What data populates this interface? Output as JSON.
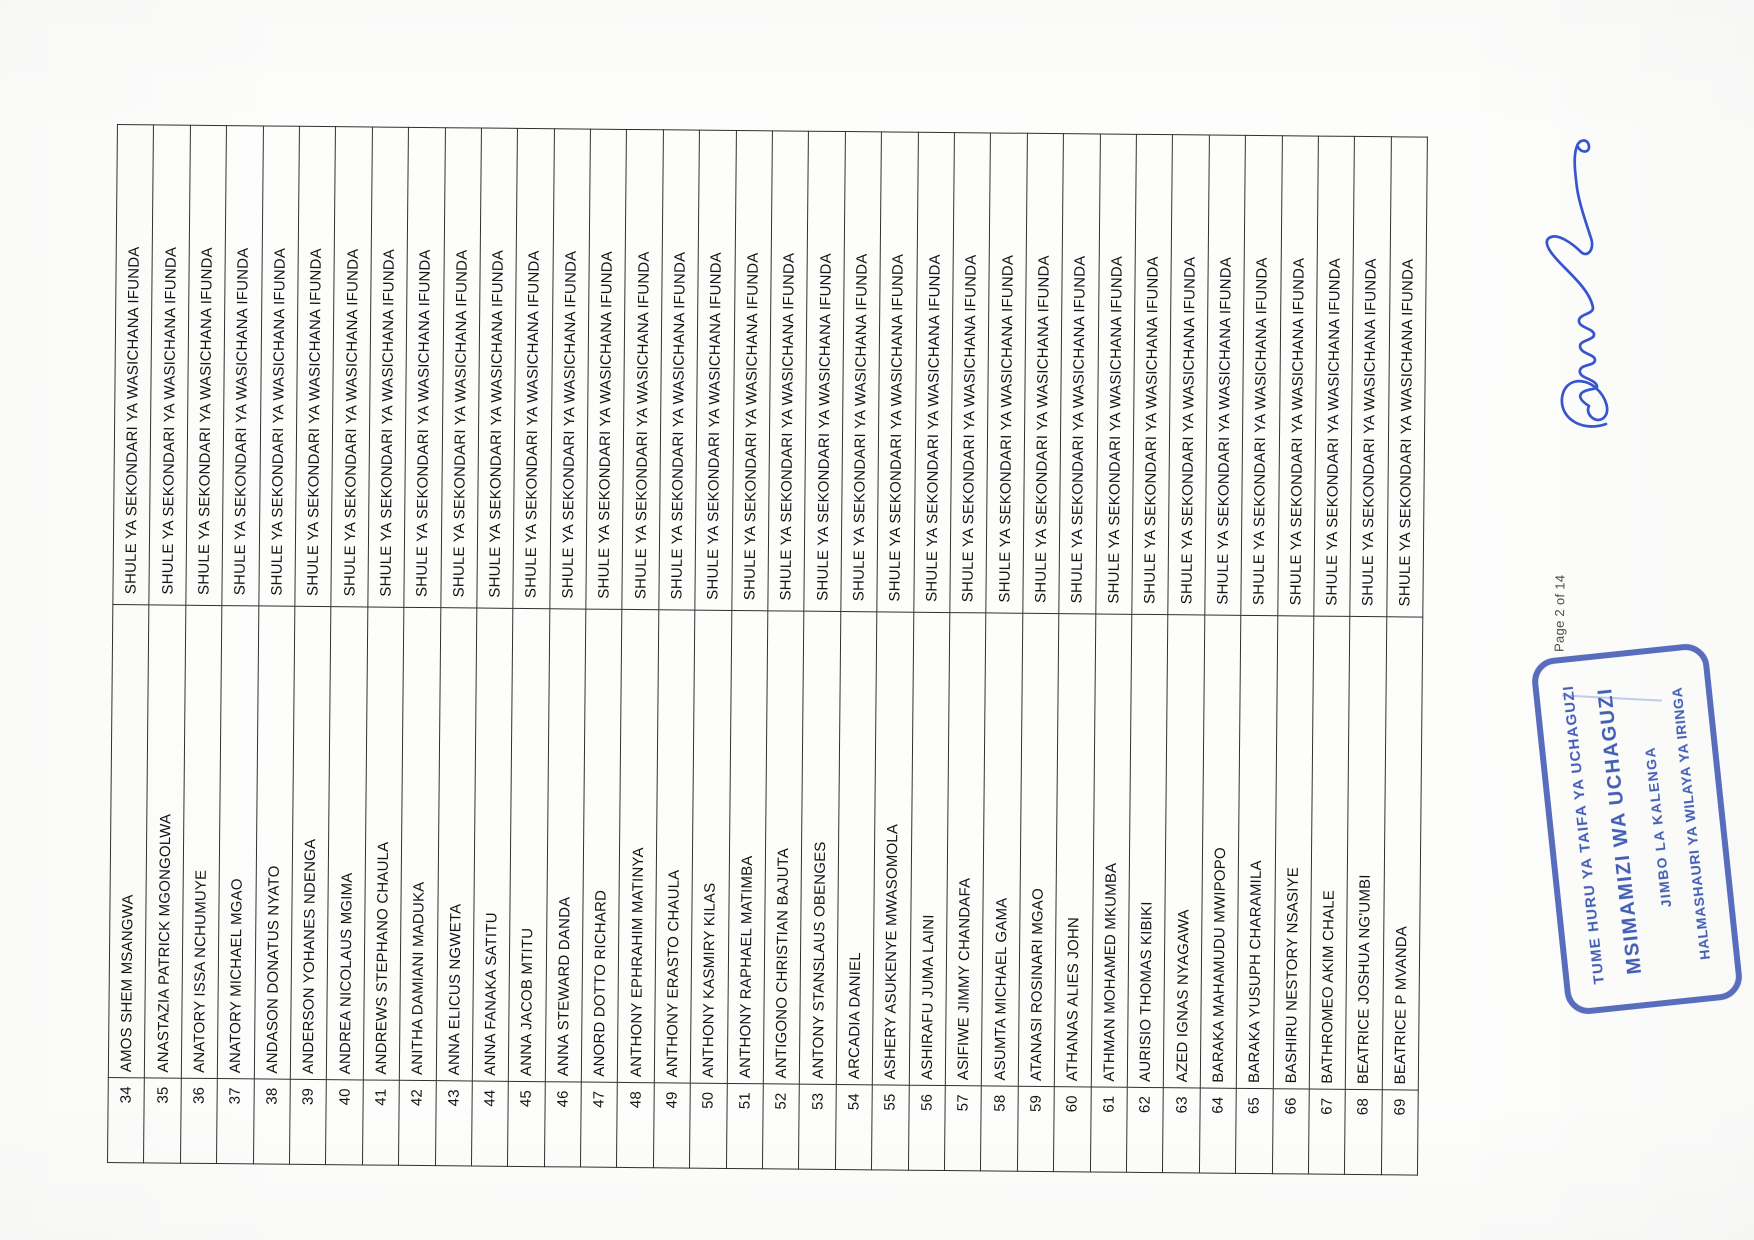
{
  "page": {
    "footer": "Page 2 of 14"
  },
  "table": {
    "columns": [
      "number",
      "candidate_name",
      "polling_station"
    ],
    "school_repeated_value": "SHULE YA SEKONDARI YA WASICHANA IFUNDA",
    "rows": [
      {
        "no": "34",
        "name": "AMOS SHEM MSANGWA",
        "school": "SHULE YA SEKONDARI YA WASICHANA IFUNDA"
      },
      {
        "no": "35",
        "name": "ANASTAZIA PATRICK MGONGOLWA",
        "school": "SHULE YA SEKONDARI YA WASICHANA IFUNDA"
      },
      {
        "no": "36",
        "name": "ANATORY ISSA NCHUMUYE",
        "school": "SHULE YA SEKONDARI YA WASICHANA IFUNDA"
      },
      {
        "no": "37",
        "name": "ANATORY MICHAEL MGAO",
        "school": "SHULE YA SEKONDARI YA WASICHANA IFUNDA"
      },
      {
        "no": "38",
        "name": "ANDASON DONATUS NYATO",
        "school": "SHULE YA SEKONDARI YA WASICHANA IFUNDA"
      },
      {
        "no": "39",
        "name": "ANDERSON YOHANES NDENGA",
        "school": "SHULE YA SEKONDARI YA WASICHANA IFUNDA"
      },
      {
        "no": "40",
        "name": "ANDREA NICOLAUS MGIMA",
        "school": "SHULE YA SEKONDARI YA WASICHANA IFUNDA"
      },
      {
        "no": "41",
        "name": "ANDREWS STEPHANO CHAULA",
        "school": "SHULE YA SEKONDARI YA WASICHANA IFUNDA"
      },
      {
        "no": "42",
        "name": "ANITHA DAMIANI MADUKA",
        "school": "SHULE YA SEKONDARI YA WASICHANA IFUNDA"
      },
      {
        "no": "43",
        "name": "ANNA ELICUS NGWETA",
        "school": "SHULE YA SEKONDARI YA WASICHANA IFUNDA"
      },
      {
        "no": "44",
        "name": "ANNA FANAKA SATITU",
        "school": "SHULE YA SEKONDARI YA WASICHANA IFUNDA"
      },
      {
        "no": "45",
        "name": "ANNA JACOB MTITU",
        "school": "SHULE YA SEKONDARI YA WASICHANA IFUNDA"
      },
      {
        "no": "46",
        "name": "ANNA STEWARD DANDA",
        "school": "SHULE YA SEKONDARI YA WASICHANA IFUNDA"
      },
      {
        "no": "47",
        "name": "ANORD DOTTO RICHARD",
        "school": "SHULE YA SEKONDARI YA WASICHANA IFUNDA"
      },
      {
        "no": "48",
        "name": "ANTHONY EPHRAHIM MATINYA",
        "school": "SHULE YA SEKONDARI YA WASICHANA IFUNDA"
      },
      {
        "no": "49",
        "name": "ANTHONY ERASTO CHAULA",
        "school": "SHULE YA SEKONDARI YA WASICHANA IFUNDA"
      },
      {
        "no": "50",
        "name": "ANTHONY KASMIRY KILAS",
        "school": "SHULE YA SEKONDARI YA WASICHANA IFUNDA"
      },
      {
        "no": "51",
        "name": "ANTHONY RAPHAEL MATIMBA",
        "school": "SHULE YA SEKONDARI YA WASICHANA IFUNDA"
      },
      {
        "no": "52",
        "name": "ANTIGONO CHRISTIAN BAJUTA",
        "school": "SHULE YA SEKONDARI YA WASICHANA IFUNDA"
      },
      {
        "no": "53",
        "name": "ANTONY STANSLAUS OBENGES",
        "school": "SHULE YA SEKONDARI YA WASICHANA IFUNDA"
      },
      {
        "no": "54",
        "name": "ARCADIA DANIEL",
        "school": "SHULE YA SEKONDARI YA WASICHANA IFUNDA"
      },
      {
        "no": "55",
        "name": "ASHERY ASUKENYE MWASOMOLA",
        "school": "SHULE YA SEKONDARI YA WASICHANA IFUNDA"
      },
      {
        "no": "56",
        "name": "ASHIRAFU JUMA LAINI",
        "school": "SHULE YA SEKONDARI YA WASICHANA IFUNDA"
      },
      {
        "no": "57",
        "name": "ASIFIWE JIMMY CHANDAFA",
        "school": "SHULE YA SEKONDARI YA WASICHANA IFUNDA"
      },
      {
        "no": "58",
        "name": "ASUMTA MICHAEL GAMA",
        "school": "SHULE YA SEKONDARI YA WASICHANA IFUNDA"
      },
      {
        "no": "59",
        "name": "ATANASI ROSINARI MGAO",
        "school": "SHULE YA SEKONDARI YA WASICHANA IFUNDA"
      },
      {
        "no": "60",
        "name": "ATHANAS ALIES JOHN",
        "school": "SHULE YA SEKONDARI YA WASICHANA IFUNDA"
      },
      {
        "no": "61",
        "name": "ATHMAN MOHAMED MKUMBA",
        "school": "SHULE YA SEKONDARI YA WASICHANA IFUNDA"
      },
      {
        "no": "62",
        "name": "AURISIO THOMAS KIBIKI",
        "school": "SHULE YA SEKONDARI YA WASICHANA IFUNDA"
      },
      {
        "no": "63",
        "name": "AZED IGNAS NYAGAWA",
        "school": "SHULE YA SEKONDARI YA WASICHANA IFUNDA"
      },
      {
        "no": "64",
        "name": "BARAKA MAHAMUDU MWIPOPO",
        "school": "SHULE YA SEKONDARI YA WASICHANA IFUNDA"
      },
      {
        "no": "65",
        "name": "BARAKA YUSUPH CHARAMILA",
        "school": "SHULE YA SEKONDARI YA WASICHANA IFUNDA"
      },
      {
        "no": "66",
        "name": "BASHIRU NESTORY NSASIYE",
        "school": "SHULE YA SEKONDARI YA WASICHANA IFUNDA"
      },
      {
        "no": "67",
        "name": "BATHROMEO AKIM CHALE",
        "school": "SHULE YA SEKONDARI YA WASICHANA IFUNDA"
      },
      {
        "no": "68",
        "name": "BEATRICE JOSHUA NG'UMBI",
        "school": "SHULE YA SEKONDARI YA WASICHANA IFUNDA"
      },
      {
        "no": "69",
        "name": "BEATRICE P MVANDA",
        "school": "SHULE YA SEKONDARI YA WASICHANA IFUNDA"
      }
    ]
  },
  "stamp": {
    "line1": "TUME HURU YA TAIFA YA UCHAGUZI",
    "line2": "MSIMAMIZI WA UCHAGUZI",
    "line3": "JIMBO LA KALENGA",
    "line4": "HALMASHAURI YA WILAYA YA IRINGA",
    "ink_color": "#4560b2"
  },
  "signature": {
    "ink_color": "#2b4ccc"
  }
}
